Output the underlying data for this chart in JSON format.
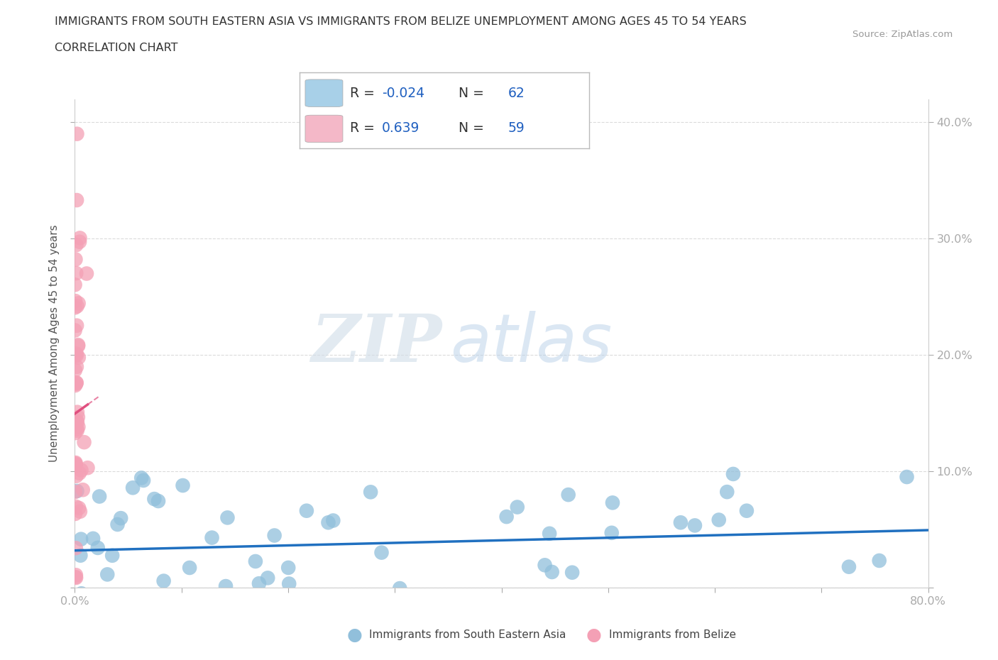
{
  "title_line1": "IMMIGRANTS FROM SOUTH EASTERN ASIA VS IMMIGRANTS FROM BELIZE UNEMPLOYMENT AMONG AGES 45 TO 54 YEARS",
  "title_line2": "CORRELATION CHART",
  "source_text": "Source: ZipAtlas.com",
  "ylabel": "Unemployment Among Ages 45 to 54 years",
  "watermark_ZIP": "ZIP",
  "watermark_atlas": "atlas",
  "xlim": [
    0.0,
    0.8
  ],
  "ylim": [
    0.0,
    0.42
  ],
  "xticks": [
    0.0,
    0.1,
    0.2,
    0.3,
    0.4,
    0.5,
    0.6,
    0.7,
    0.8
  ],
  "xticklabels_show": [
    "0.0%",
    "",
    "",
    "",
    "",
    "",
    "",
    "",
    "80.0%"
  ],
  "yticks": [
    0.0,
    0.1,
    0.2,
    0.3,
    0.4
  ],
  "yticklabels_right": [
    "",
    "10.0%",
    "20.0%",
    "30.0%",
    "40.0%"
  ],
  "blue_R": -0.024,
  "blue_N": 62,
  "pink_R": 0.639,
  "pink_N": 59,
  "blue_color": "#91bfdb",
  "pink_color": "#f4a0b5",
  "blue_line_color": "#2070c0",
  "pink_line_color": "#e05080",
  "grid_color": "#cccccc",
  "background_color": "#ffffff",
  "blue_color_legend": "#a8d0e8",
  "pink_color_legend": "#f4b8c8",
  "legend_text_color": "#2060c0",
  "legend_label_color": "#333333"
}
